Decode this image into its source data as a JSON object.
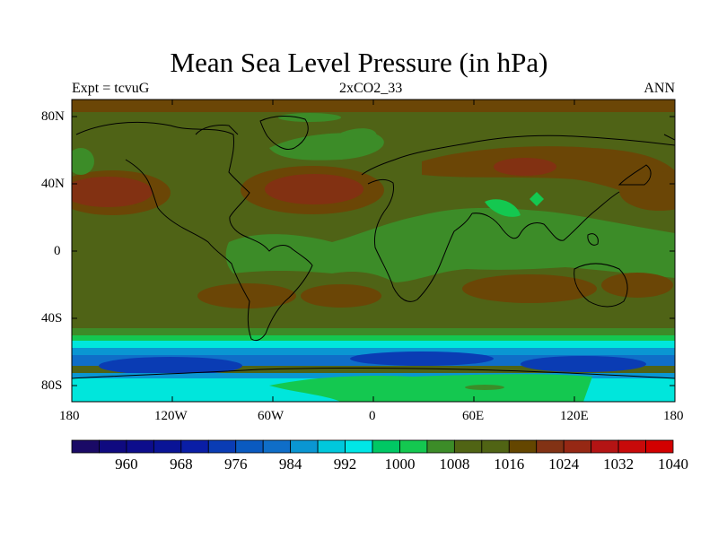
{
  "title": "Mean Sea Level Pressure (in hPa)",
  "left_label": "Expt = tcvuG",
  "center_label": "2xCO2_33",
  "right_label": "ANN",
  "lat_ticks": [
    "80N",
    "40N",
    "0",
    "40S",
    "80S"
  ],
  "lon_ticks": [
    "180",
    "120W",
    "60W",
    "0",
    "60E",
    "120E",
    "180"
  ],
  "colorbar": {
    "labels": [
      "960",
      "968",
      "976",
      "984",
      "992",
      "1000",
      "1008",
      "1016",
      "1024",
      "1032",
      "1040"
    ],
    "colors": [
      "#1a0a66",
      "#0f0a80",
      "#0d0d8c",
      "#0a1496",
      "#0a1ea6",
      "#0a3cb4",
      "#0a5ac0",
      "#0f6ec8",
      "#0a96d2",
      "#00c8dc",
      "#00e6e6",
      "#00c864",
      "#14c850",
      "#3c8c28",
      "#506414",
      "#506414",
      "#644600",
      "#823214",
      "#962814",
      "#b41414",
      "#c80a0a",
      "#d20000"
    ]
  },
  "map_colors": {
    "land_background": "#4f6316",
    "high_1024": "#6b4606",
    "high_1032": "#823112",
    "low_1008": "#3c8c28",
    "low_1000": "#14c850",
    "low_992": "#00e6dc",
    "low_984": "#0a96d2",
    "low_976": "#0f6ec8",
    "low_968": "#0a3cb4",
    "coast": "#000000"
  }
}
